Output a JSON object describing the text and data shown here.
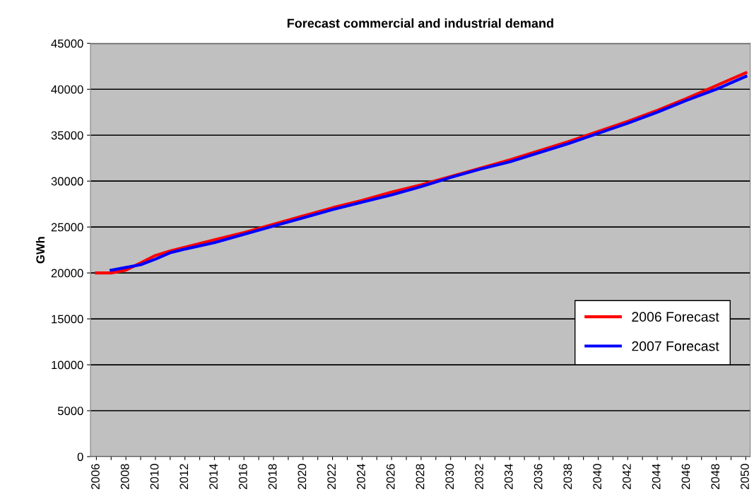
{
  "chart_data": {
    "type": "line",
    "title": "Forecast commercial and industrial demand",
    "ylabel": "GWh",
    "xlim": [
      2005.6,
      2050.3
    ],
    "ylim": [
      0,
      45000
    ],
    "xticks": [
      2006,
      {
        "value": 2007,
        "label": null
      },
      2008,
      {
        "value": 2009,
        "label": null
      },
      2010,
      {
        "value": 2011,
        "label": null
      },
      2012,
      {
        "value": 2013,
        "label": null
      },
      2014,
      {
        "value": 2015,
        "label": null
      },
      2016,
      {
        "value": 2017,
        "label": null
      },
      2018,
      {
        "value": 2019,
        "label": null
      },
      2020,
      {
        "value": 2021,
        "label": null
      },
      2022,
      {
        "value": 2023,
        "label": null
      },
      2024,
      {
        "value": 2025,
        "label": null
      },
      2026,
      {
        "value": 2027,
        "label": null
      },
      2028,
      {
        "value": 2029,
        "label": null
      },
      2030,
      {
        "value": 2031,
        "label": null
      },
      2032,
      {
        "value": 2033,
        "label": null
      },
      2034,
      {
        "value": 2035,
        "label": null
      },
      2036,
      {
        "value": 2037,
        "label": null
      },
      2038,
      {
        "value": 2039,
        "label": null
      },
      2040,
      {
        "value": 2041,
        "label": null
      },
      2042,
      {
        "value": 2043,
        "label": null
      },
      2044,
      {
        "value": 2045,
        "label": null
      },
      2046,
      {
        "value": 2047,
        "label": null
      },
      2048,
      {
        "value": 2049,
        "label": null
      },
      2050
    ],
    "yticks": [
      0,
      5000,
      10000,
      15000,
      20000,
      25000,
      30000,
      35000,
      40000,
      45000
    ],
    "grid": "y",
    "legend": "right",
    "marker": "none",
    "line_style": "solid",
    "series": [
      {
        "name": "2006 Forecast",
        "color": "#ff0000",
        "x": [
          2006,
          2007,
          2008,
          2009,
          2010,
          2011,
          2012,
          2014,
          2016,
          2018,
          2020,
          2022,
          2024,
          2026,
          2028,
          2030,
          2032,
          2034,
          2036,
          2038,
          2040,
          2042,
          2044,
          2046,
          2048,
          2050
        ],
        "values": [
          20000,
          20000,
          20300,
          21100,
          21900,
          22400,
          22800,
          23600,
          24400,
          25300,
          26200,
          27100,
          27900,
          28800,
          29600,
          30500,
          31400,
          32300,
          33300,
          34300,
          35400,
          36500,
          37700,
          39000,
          40400,
          41800
        ]
      },
      {
        "name": "2007 Forecast",
        "color": "#0000ff",
        "x": [
          2007,
          2008,
          2009,
          2010,
          2011,
          2012,
          2014,
          2016,
          2018,
          2020,
          2022,
          2024,
          2026,
          2028,
          2030,
          2032,
          2034,
          2036,
          2038,
          2040,
          2042,
          2044,
          2046,
          2048,
          2050
        ],
        "values": [
          20300,
          20600,
          20900,
          21500,
          22200,
          22600,
          23300,
          24200,
          25100,
          26000,
          26900,
          27700,
          28500,
          29400,
          30400,
          31300,
          32100,
          33100,
          34100,
          35200,
          36300,
          37500,
          38800,
          40000,
          41400
        ]
      }
    ]
  }
}
